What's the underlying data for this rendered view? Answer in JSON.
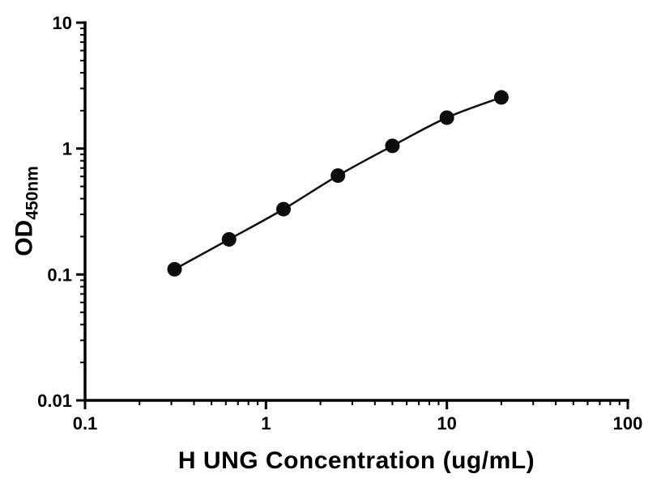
{
  "chart_data": {
    "type": "line",
    "x": [
      0.3125,
      0.625,
      1.25,
      2.5,
      5,
      10,
      20
    ],
    "y": [
      0.11,
      0.19,
      0.33,
      0.61,
      1.05,
      1.76,
      2.55
    ],
    "xlabel": "H UNG Concentration (ug/mL)",
    "ylabel_main": "OD",
    "ylabel_sub": "450nm",
    "xscale": "log",
    "yscale": "log",
    "xlim": [
      0.1,
      100
    ],
    "ylim": [
      0.01,
      10
    ],
    "x_ticks": [
      0.1,
      1,
      10,
      100
    ],
    "x_tick_labels": [
      "0.1",
      "1",
      "10",
      "100"
    ],
    "y_ticks": [
      0.01,
      0.1,
      1,
      10
    ],
    "y_tick_labels": [
      "0.01",
      "0.1",
      "1",
      "10"
    ],
    "grid": false,
    "legend": "none",
    "title": "",
    "marker_shape": "filled-circle",
    "marker_color": "#0d0d0d",
    "line_color": "#0d0d0d",
    "axis_color": "#000000",
    "background_color": "#ffffff"
  }
}
